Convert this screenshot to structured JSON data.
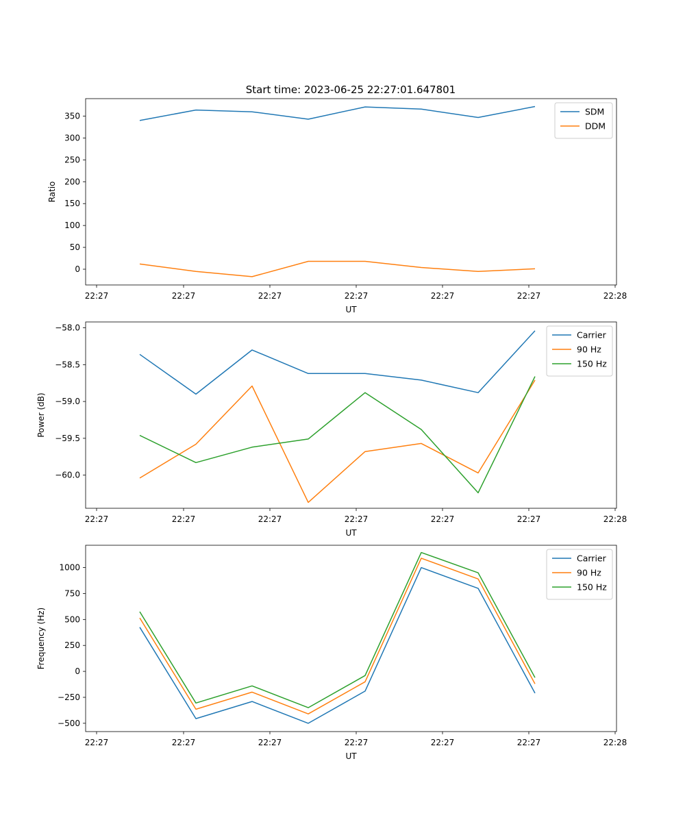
{
  "figure": {
    "title": "Start time: 2023-06-25 22:27:01.647801"
  },
  "chart_data": [
    {
      "type": "line",
      "xlabel": "UT",
      "ylabel": "Ratio",
      "x_tick_labels": [
        "22:27",
        "22:27",
        "22:27",
        "22:27",
        "22:27",
        "22:27",
        "22:28"
      ],
      "ylim": [
        -36,
        390
      ],
      "yticks": [
        0,
        50,
        100,
        150,
        200,
        250,
        300,
        350
      ],
      "legend_position": "top-right",
      "series": [
        {
          "name": "SDM",
          "color": "#1f77b4",
          "values": [
            340,
            364,
            360,
            343,
            371,
            366,
            347,
            372
          ]
        },
        {
          "name": "DDM",
          "color": "#ff7f0e",
          "values": [
            12,
            -5,
            -17,
            18,
            18,
            4,
            -5,
            1
          ]
        }
      ]
    },
    {
      "type": "line",
      "xlabel": "UT",
      "ylabel": "Power (dB)",
      "x_tick_labels": [
        "22:27",
        "22:27",
        "22:27",
        "22:27",
        "22:27",
        "22:27",
        "22:28"
      ],
      "ylim": [
        -60.45,
        -57.92
      ],
      "yticks": [
        -60.0,
        -59.5,
        -59.0,
        -58.5,
        -58.0
      ],
      "ytick_labels": [
        "−60.0",
        "−59.5",
        "−59.0",
        "−58.5",
        "−58.0"
      ],
      "legend_position": "top-right",
      "series": [
        {
          "name": "Carrier",
          "color": "#1f77b4",
          "values": [
            -58.36,
            -58.9,
            -58.3,
            -58.62,
            -58.62,
            -58.71,
            -58.88,
            -58.04
          ]
        },
        {
          "name": "90 Hz",
          "color": "#ff7f0e",
          "values": [
            -60.04,
            -59.58,
            -58.79,
            -60.37,
            -59.68,
            -59.57,
            -59.97,
            -58.71
          ]
        },
        {
          "name": "150 Hz",
          "color": "#2ca02c",
          "values": [
            -59.46,
            -59.83,
            -59.62,
            -59.51,
            -58.88,
            -59.38,
            -60.24,
            -58.66
          ]
        }
      ]
    },
    {
      "type": "line",
      "xlabel": "UT",
      "ylabel": "Frequency (Hz)",
      "x_tick_labels": [
        "22:27",
        "22:27",
        "22:27",
        "22:27",
        "22:27",
        "22:27",
        "22:28"
      ],
      "ylim": [
        -580,
        1215
      ],
      "yticks": [
        -500,
        -250,
        0,
        250,
        500,
        750,
        1000
      ],
      "ytick_labels": [
        "−500",
        "−250",
        "0",
        "250",
        "500",
        "750",
        "1000"
      ],
      "legend_position": "top-right",
      "series": [
        {
          "name": "Carrier",
          "color": "#1f77b4",
          "values": [
            425,
            -455,
            -290,
            -500,
            -190,
            1000,
            800,
            -210
          ]
        },
        {
          "name": "90 Hz",
          "color": "#ff7f0e",
          "values": [
            515,
            -365,
            -200,
            -410,
            -100,
            1090,
            890,
            -120
          ]
        },
        {
          "name": "150 Hz",
          "color": "#2ca02c",
          "values": [
            575,
            -305,
            -140,
            -350,
            -40,
            1145,
            950,
            -60
          ]
        }
      ]
    }
  ]
}
